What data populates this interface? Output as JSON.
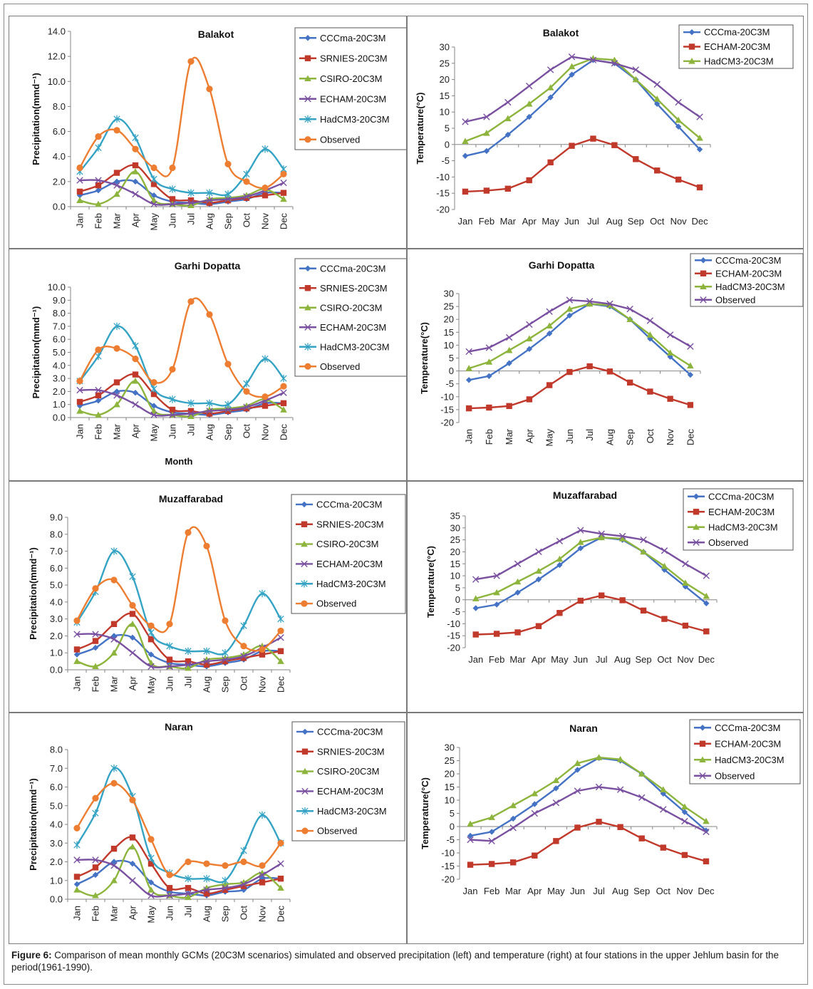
{
  "months": [
    "Jan",
    "Feb",
    "Mar",
    "Apr",
    "May",
    "Jun",
    "Jul",
    "Aug",
    "Sep",
    "Oct",
    "Nov",
    "Dec"
  ],
  "caption": {
    "label": "Figure 6:",
    "text": " Comparison of mean monthly GCMs (20C3M scenarios) simulated and observed precipitation (left)  and temperature (right) at four stations in the upper Jehlum basin for the period(1961-1990)."
  },
  "series_colors": {
    "CCCma": "#4472c4",
    "SRNIES": "#c0392b",
    "CSIRO": "#8db43c",
    "ECHAM_precip": "#7a50a0",
    "HadCM3_precip": "#35a3c4",
    "Observed_precip": "#ed7d31",
    "ECHAM_temp": "#c0392b",
    "HadCM3_temp": "#8db43c",
    "Observed_temp": "#7a50a0"
  },
  "chart_data": [
    {
      "id": "balakot-precip",
      "type": "line",
      "title": "Balakot",
      "ylabel": "Precipitation(mmd⁻¹)",
      "xlabel": "",
      "ylim": [
        0,
        14
      ],
      "yticks": [
        0,
        2,
        4,
        6,
        8,
        10,
        12,
        14
      ],
      "ytick_decimals": 1,
      "xtick_rotate": true,
      "categories": [
        "Jan",
        "Feb",
        "Mar",
        "Apr",
        "May",
        "Jun",
        "Jul",
        "Aug",
        "Sep",
        "Oct",
        "Nov",
        "Dec"
      ],
      "series": [
        {
          "name": "CCCma-20C3M",
          "values": [
            0.9,
            1.3,
            2.0,
            2.0,
            0.9,
            0.4,
            0.3,
            0.2,
            0.4,
            0.6,
            1.1,
            1.1
          ]
        },
        {
          "name": "SRNIES-20C3M",
          "values": [
            1.2,
            1.7,
            2.7,
            3.3,
            1.8,
            0.6,
            0.5,
            0.3,
            0.5,
            0.7,
            0.9,
            1.1
          ]
        },
        {
          "name": "CSIRO-20C3M",
          "values": [
            0.5,
            0.2,
            1.0,
            2.8,
            0.5,
            0.2,
            0.1,
            0.6,
            0.7,
            0.9,
            1.4,
            0.6
          ]
        },
        {
          "name": "ECHAM-20C3M",
          "values": [
            2.1,
            2.1,
            1.7,
            1.0,
            0.2,
            0.2,
            0.3,
            0.5,
            0.6,
            0.8,
            1.3,
            1.9
          ]
        },
        {
          "name": "HadCM3-20C3M",
          "values": [
            2.8,
            4.7,
            7.0,
            5.5,
            2.2,
            1.4,
            1.1,
            1.1,
            1.0,
            2.6,
            4.6,
            3.0
          ]
        },
        {
          "name": "Observed",
          "values": [
            3.1,
            5.6,
            6.1,
            4.6,
            3.1,
            3.1,
            11.6,
            9.4,
            3.4,
            2.0,
            1.5,
            2.6
          ]
        }
      ]
    },
    {
      "id": "balakot-temp",
      "type": "line",
      "title": "Balakot",
      "ylabel": "Temperature(°C)",
      "xlabel": "",
      "ylim": [
        -20,
        30
      ],
      "yticks": [
        -20,
        -15,
        -10,
        -5,
        0,
        5,
        10,
        15,
        20,
        25,
        30
      ],
      "ytick_decimals": 0,
      "xtick_rotate": false,
      "categories": [
        "Jan",
        "Feb",
        "Mar",
        "Apr",
        "May",
        "Jun",
        "Jul",
        "Aug",
        "Sep",
        "Oct",
        "Nov",
        "Dec"
      ],
      "series": [
        {
          "name": "CCCma-20C3M",
          "values": [
            -3.5,
            -2,
            3,
            8.5,
            14.5,
            21.5,
            26,
            25,
            20,
            12.5,
            5.5,
            -1.5
          ]
        },
        {
          "name": "ECHAM-20C3M",
          "values": [
            -14.5,
            -14.2,
            -13.6,
            -11,
            -5.5,
            -0.4,
            1.8,
            -0.2,
            -4.5,
            -8,
            -10.8,
            -13.2
          ]
        },
        {
          "name": "HadCM3-20C3M",
          "values": [
            1,
            3.5,
            8,
            12.5,
            17.5,
            24,
            26.5,
            26,
            20,
            14,
            7.5,
            2
          ]
        },
        {
          "name": "",
          "values": [
            7,
            8.5,
            13,
            18,
            23,
            27,
            26,
            25,
            23,
            18.5,
            13,
            8.5
          ]
        }
      ]
    },
    {
      "id": "garhi-precip",
      "type": "line",
      "title": "Garhi Dopatta",
      "ylabel": "Precipitation(mmd⁻¹)",
      "xlabel": "Month",
      "ylim": [
        0,
        10
      ],
      "yticks": [
        0,
        1,
        2,
        3,
        4,
        5,
        6,
        7,
        8,
        9,
        10
      ],
      "ytick_decimals": 1,
      "xtick_rotate": true,
      "categories": [
        "Jan",
        "Feb",
        "Mar",
        "Apr",
        "May",
        "Jun",
        "Jul",
        "Aug",
        "Sep",
        "Oct",
        "Nov",
        "Dec"
      ],
      "series": [
        {
          "name": "CCCma-20C3M",
          "values": [
            0.9,
            1.3,
            2.0,
            1.9,
            0.9,
            0.4,
            0.3,
            0.2,
            0.4,
            0.6,
            1.1,
            1.1
          ]
        },
        {
          "name": "SRNIES-20C3M",
          "values": [
            1.2,
            1.7,
            2.7,
            3.3,
            1.8,
            0.6,
            0.5,
            0.3,
            0.5,
            0.7,
            0.9,
            1.1
          ]
        },
        {
          "name": "CSIRO-20C3M",
          "values": [
            0.5,
            0.2,
            1.0,
            2.8,
            0.5,
            0.2,
            0.1,
            0.6,
            0.7,
            0.9,
            1.4,
            0.6
          ]
        },
        {
          "name": "ECHAM-20C3M",
          "values": [
            2.1,
            2.1,
            1.7,
            1.0,
            0.2,
            0.2,
            0.3,
            0.5,
            0.6,
            0.8,
            1.3,
            1.9
          ]
        },
        {
          "name": "HadCM3-20C3M",
          "values": [
            2.8,
            4.7,
            7.0,
            5.5,
            2.2,
            1.4,
            1.1,
            1.1,
            1.0,
            2.6,
            4.5,
            3.0
          ]
        },
        {
          "name": "Observed",
          "values": [
            2.8,
            5.2,
            5.3,
            4.5,
            2.7,
            3.7,
            8.9,
            7.9,
            4.1,
            2.0,
            1.6,
            2.4
          ]
        }
      ]
    },
    {
      "id": "garhi-temp",
      "type": "line",
      "title": "Garhi Dopatta",
      "ylabel": "Temperature(°C)",
      "xlabel": "",
      "ylim": [
        -20,
        30
      ],
      "yticks": [
        -20,
        -15,
        -10,
        -5,
        0,
        5,
        10,
        15,
        20,
        25,
        30
      ],
      "ytick_decimals": 0,
      "xtick_rotate": true,
      "categories": [
        "Jan",
        "Feb",
        "Mar",
        "Apr",
        "May",
        "Jun",
        "Jul",
        "Aug",
        "Sep",
        "Oct",
        "Nov",
        "Dec"
      ],
      "series": [
        {
          "name": "CCCma-20C3M",
          "values": [
            -3.5,
            -2,
            3,
            8.5,
            14.5,
            21.5,
            26,
            25,
            20,
            12.5,
            5.5,
            -1.5
          ]
        },
        {
          "name": "ECHAM-20C3M",
          "values": [
            -14.5,
            -14.2,
            -13.6,
            -11,
            -5.5,
            -0.4,
            1.8,
            -0.2,
            -4.5,
            -8,
            -10.8,
            -13.2
          ]
        },
        {
          "name": "HadCM3-20C3M",
          "values": [
            1,
            3.5,
            8,
            12.5,
            17.5,
            24,
            26,
            25.5,
            20,
            14,
            7,
            2
          ]
        },
        {
          "name": "Observed",
          "values": [
            7.5,
            9,
            13,
            18,
            23,
            27.5,
            27,
            26,
            24,
            19.5,
            14,
            9.5
          ]
        }
      ]
    },
    {
      "id": "muzaffarabad-precip",
      "type": "line",
      "title": "Muzaffarabad",
      "ylabel": "Precipitation(mmd⁻¹)",
      "xlabel": "",
      "ylim": [
        0,
        9
      ],
      "yticks": [
        0,
        1,
        2,
        3,
        4,
        5,
        6,
        7,
        8,
        9
      ],
      "ytick_decimals": 1,
      "xtick_rotate": true,
      "categories": [
        "Jan",
        "Feb",
        "Mar",
        "Apr",
        "May",
        "Jun",
        "Jul",
        "Aug",
        "Sep",
        "Oct",
        "Nov",
        "Dec"
      ],
      "series": [
        {
          "name": "CCCma-20C3M",
          "values": [
            0.9,
            1.3,
            2.0,
            1.9,
            0.9,
            0.4,
            0.3,
            0.2,
            0.4,
            0.6,
            1.1,
            1.1
          ]
        },
        {
          "name": "SRNIES-20C3M",
          "values": [
            1.2,
            1.7,
            2.7,
            3.3,
            1.8,
            0.6,
            0.5,
            0.3,
            0.5,
            0.7,
            0.9,
            1.1
          ]
        },
        {
          "name": "CSIRO-20C3M",
          "values": [
            0.5,
            0.2,
            1.0,
            2.7,
            0.4,
            0.2,
            0.1,
            0.6,
            0.7,
            0.9,
            1.4,
            0.5
          ]
        },
        {
          "name": "ECHAM-20C3M",
          "values": [
            2.1,
            2.1,
            1.8,
            1.0,
            0.2,
            0.2,
            0.3,
            0.5,
            0.6,
            0.8,
            1.3,
            1.9
          ]
        },
        {
          "name": "HadCM3-20C3M",
          "values": [
            2.8,
            4.6,
            7.0,
            5.5,
            2.2,
            1.4,
            1.1,
            1.1,
            1.0,
            2.6,
            4.5,
            3.0
          ]
        },
        {
          "name": "Observed",
          "values": [
            2.9,
            4.8,
            5.3,
            3.8,
            2.6,
            2.7,
            8.1,
            7.3,
            2.9,
            1.4,
            1.2,
            2.3
          ]
        }
      ]
    },
    {
      "id": "muzaffarabad-temp",
      "type": "line",
      "title": "Muzaffarabad",
      "ylabel": "Temperature(°C)",
      "xlabel": "",
      "ylim": [
        -20,
        35
      ],
      "yticks": [
        -20,
        -15,
        -10,
        -5,
        0,
        5,
        10,
        15,
        20,
        25,
        30,
        35
      ],
      "ytick_decimals": 0,
      "xtick_rotate": false,
      "categories": [
        "Jan",
        "Feb",
        "Mar",
        "Apr",
        "May",
        "Jun",
        "Jul",
        "Aug",
        "Sep",
        "Oct",
        "Nov",
        "Dec"
      ],
      "series": [
        {
          "name": "CCCma-20C3M",
          "values": [
            -3.5,
            -2,
            3,
            8.5,
            14.5,
            21.5,
            26,
            25,
            20,
            12.5,
            5.5,
            -1.5
          ]
        },
        {
          "name": "ECHAM-20C3M",
          "values": [
            -14.5,
            -14.2,
            -13.6,
            -11,
            -5.5,
            -0.4,
            1.8,
            -0.2,
            -4.5,
            -8,
            -10.8,
            -13.2
          ]
        },
        {
          "name": "HadCM3-20C3M",
          "values": [
            0.5,
            3,
            7.5,
            12,
            17,
            24,
            26,
            25.5,
            20,
            14,
            7,
            1.5
          ]
        },
        {
          "name": "Observed",
          "values": [
            8.5,
            10,
            15,
            20,
            24.5,
            29,
            27.5,
            26.5,
            25,
            20.5,
            15,
            10
          ]
        }
      ]
    },
    {
      "id": "naran-precip",
      "type": "line",
      "title": "Naran",
      "ylabel": "Precipitation(mmd⁻¹)",
      "xlabel": "",
      "ylim": [
        0,
        8
      ],
      "yticks": [
        0,
        1,
        2,
        3,
        4,
        5,
        6,
        7,
        8
      ],
      "ytick_decimals": 1,
      "xtick_rotate": true,
      "categories": [
        "Jan",
        "Feb",
        "Mar",
        "Apr",
        "May",
        "Jun",
        "Jul",
        "Aug",
        "Sep",
        "Oct",
        "Nov",
        "Dec"
      ],
      "series": [
        {
          "name": "CCCma-20C3M",
          "values": [
            0.8,
            1.3,
            2.0,
            1.9,
            0.9,
            0.4,
            0.3,
            0.2,
            0.4,
            0.5,
            1.1,
            1.1
          ]
        },
        {
          "name": "SRNIES-20C3M",
          "values": [
            1.2,
            1.7,
            2.7,
            3.3,
            1.9,
            0.6,
            0.6,
            0.3,
            0.5,
            0.7,
            0.9,
            1.1
          ]
        },
        {
          "name": "CSIRO-20C3M",
          "values": [
            0.5,
            0.2,
            1.0,
            2.8,
            0.5,
            0.2,
            0.1,
            0.6,
            0.8,
            0.9,
            1.4,
            0.6
          ]
        },
        {
          "name": "ECHAM-20C3M",
          "values": [
            2.1,
            2.1,
            1.8,
            1.0,
            0.2,
            0.2,
            0.3,
            0.5,
            0.6,
            0.8,
            1.3,
            1.9
          ]
        },
        {
          "name": "HadCM3-20C3M",
          "values": [
            2.9,
            4.6,
            7.0,
            5.5,
            2.2,
            1.4,
            1.1,
            1.1,
            1.0,
            2.6,
            4.5,
            3.0
          ]
        },
        {
          "name": "Observed",
          "values": [
            3.8,
            5.4,
            6.2,
            5.3,
            3.2,
            1.3,
            2.0,
            1.9,
            1.8,
            2.0,
            1.8,
            3.0
          ]
        }
      ]
    },
    {
      "id": "naran-temp",
      "type": "line",
      "title": "Naran",
      "ylabel": "Temperature(°C)",
      "xlabel": "",
      "ylim": [
        -20,
        30
      ],
      "yticks": [
        -20,
        -15,
        -10,
        -5,
        0,
        5,
        10,
        15,
        20,
        25,
        30
      ],
      "ytick_decimals": 0,
      "xtick_rotate": false,
      "categories": [
        "Jan",
        "Feb",
        "Mar",
        "Apr",
        "May",
        "Jun",
        "Jul",
        "Aug",
        "Sep",
        "Oct",
        "Nov",
        "Dec"
      ],
      "series": [
        {
          "name": "CCCma-20C3M",
          "values": [
            -3.5,
            -2,
            3,
            8.5,
            14.5,
            21.5,
            26,
            25,
            20,
            12.5,
            5.5,
            -1.5
          ]
        },
        {
          "name": "ECHAM-20C3M",
          "values": [
            -14.5,
            -14.2,
            -13.6,
            -11,
            -5.5,
            -0.4,
            1.8,
            -0.2,
            -4.5,
            -8,
            -10.8,
            -13.2
          ]
        },
        {
          "name": "HadCM3-20C3M",
          "values": [
            1,
            3.5,
            8,
            12.5,
            17.5,
            24,
            26.2,
            25.5,
            20,
            14,
            7.5,
            2
          ]
        },
        {
          "name": "Observed",
          "values": [
            -5,
            -5.5,
            -0.5,
            5,
            9,
            13.5,
            15,
            14,
            11,
            6.5,
            2,
            -2
          ]
        }
      ]
    }
  ]
}
